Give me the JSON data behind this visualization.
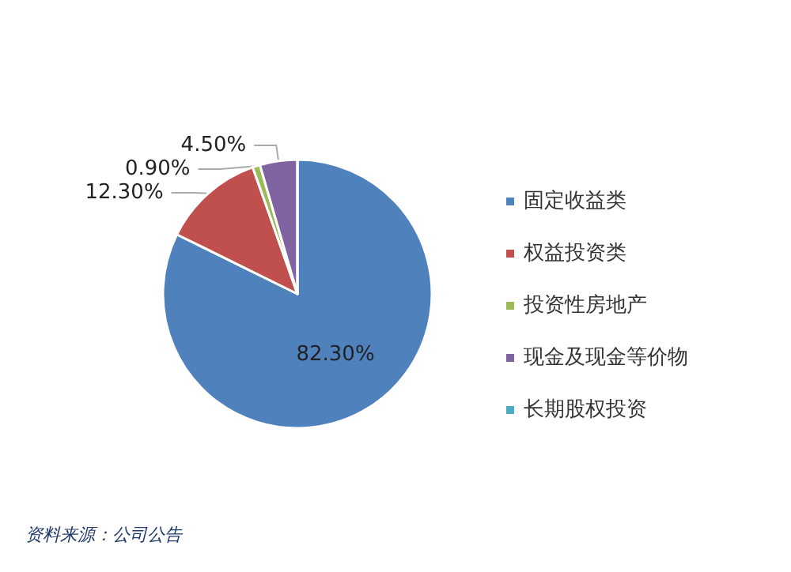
{
  "chart_data": {
    "type": "pie",
    "categories": [
      "固定收益类",
      "权益投资类",
      "投资性房地产",
      "现金及现金等价物",
      "长期股权投资"
    ],
    "values": [
      82.3,
      12.3,
      0.9,
      4.5,
      0
    ],
    "value_labels": [
      "82.30%",
      "12.30%",
      "0.90%",
      "4.50%",
      null
    ],
    "colors": [
      "#4f81bd",
      "#c0504d",
      "#9bbb59",
      "#8064a2",
      "#4bacc6"
    ],
    "legend": "right",
    "annotations": [
      "资料来源：公司公告"
    ]
  }
}
